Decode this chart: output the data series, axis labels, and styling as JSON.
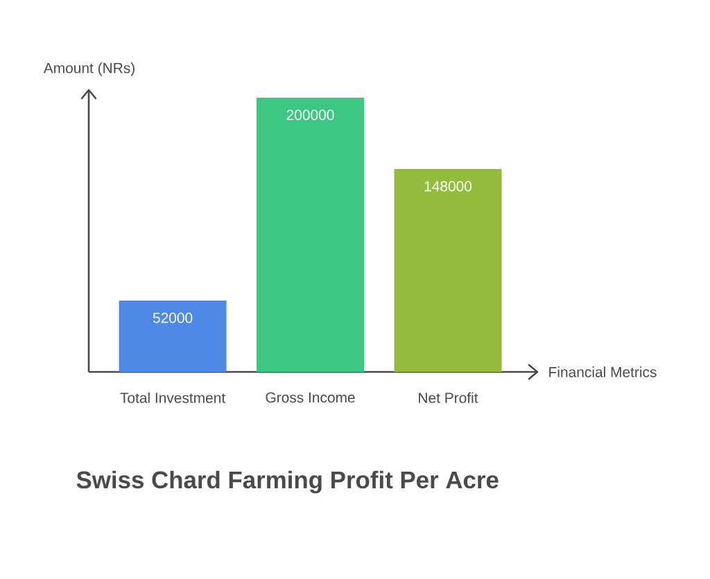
{
  "chart_data": {
    "type": "bar",
    "title": "Swiss Chard Farming Profit Per Acre",
    "xlabel": "Financial Metrics",
    "ylabel": "Amount (NRs)",
    "categories": [
      "Total Investment",
      "Gross Income",
      "Net Profit"
    ],
    "values": [
      52000,
      200000,
      148000
    ],
    "colors": [
      "#4e89e8",
      "#3ec683",
      "#93bc3c"
    ],
    "data_labels": true
  }
}
